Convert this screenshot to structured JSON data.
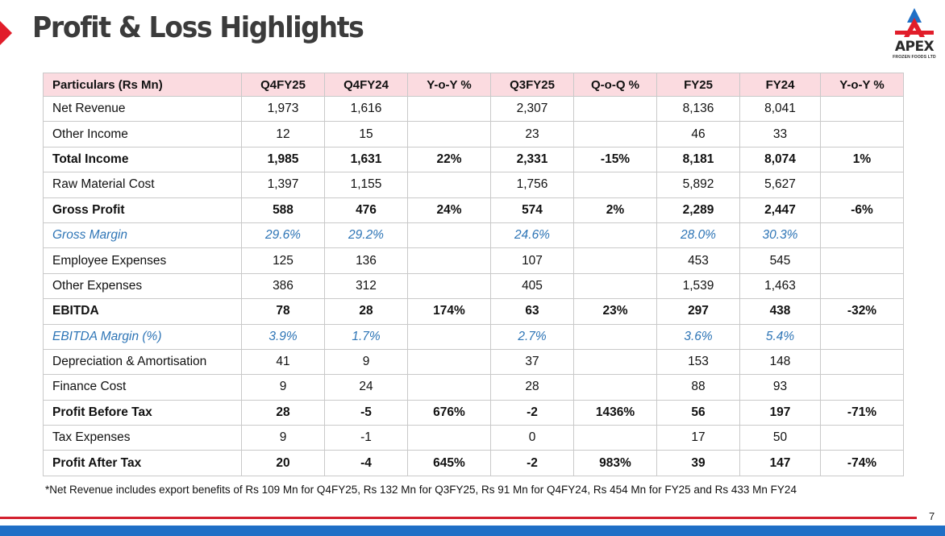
{
  "title": "Profit & Loss Highlights",
  "logo": {
    "name": "APEX",
    "subtitle": "FROZEN FOODS LTD"
  },
  "table": {
    "headers": [
      "Particulars (Rs Mn)",
      "Q4FY25",
      "Q4FY24",
      "Y-o-Y %",
      "Q3FY25",
      "Q-o-Q %",
      "FY25",
      "FY24",
      "Y-o-Y %"
    ],
    "rows": [
      {
        "style": "normal",
        "cells": [
          "Net Revenue",
          "1,973",
          "1,616",
          "",
          "2,307",
          "",
          "8,136",
          "8,041",
          ""
        ]
      },
      {
        "style": "normal",
        "cells": [
          "Other Income",
          "12",
          "15",
          "",
          "23",
          "",
          "46",
          "33",
          ""
        ]
      },
      {
        "style": "bold",
        "cells": [
          "Total Income",
          "1,985",
          "1,631",
          "22%",
          "2,331",
          "-15%",
          "8,181",
          "8,074",
          "1%"
        ]
      },
      {
        "style": "normal",
        "cells": [
          "Raw Material Cost",
          "1,397",
          "1,155",
          "",
          "1,756",
          "",
          "5,892",
          "5,627",
          ""
        ]
      },
      {
        "style": "bold",
        "cells": [
          "Gross Profit",
          "588",
          "476",
          "24%",
          "574",
          "2%",
          "2,289",
          "2,447",
          "-6%"
        ]
      },
      {
        "style": "italic",
        "cells": [
          "Gross Margin",
          "29.6%",
          "29.2%",
          "",
          "24.6%",
          "",
          "28.0%",
          "30.3%",
          ""
        ]
      },
      {
        "style": "normal",
        "cells": [
          "Employee Expenses",
          "125",
          "136",
          "",
          "107",
          "",
          "453",
          "545",
          ""
        ]
      },
      {
        "style": "normal",
        "cells": [
          "Other Expenses",
          "386",
          "312",
          "",
          "405",
          "",
          "1,539",
          "1,463",
          ""
        ]
      },
      {
        "style": "bold",
        "cells": [
          "EBITDA",
          "78",
          "28",
          "174%",
          "63",
          "23%",
          "297",
          "438",
          "-32%"
        ]
      },
      {
        "style": "italic",
        "cells": [
          "EBITDA Margin (%)",
          "3.9%",
          "1.7%",
          "",
          "2.7%",
          "",
          "3.6%",
          "5.4%",
          ""
        ]
      },
      {
        "style": "normal",
        "cells": [
          "Depreciation & Amortisation",
          "41",
          "9",
          "",
          "37",
          "",
          "153",
          "148",
          ""
        ]
      },
      {
        "style": "normal",
        "cells": [
          "Finance Cost",
          "9",
          "24",
          "",
          "28",
          "",
          "88",
          "93",
          ""
        ]
      },
      {
        "style": "bold",
        "cells": [
          "Profit Before Tax",
          "28",
          "-5",
          "676%",
          "-2",
          "1436%",
          "56",
          "197",
          "-71%"
        ]
      },
      {
        "style": "normal",
        "cells": [
          "Tax Expenses",
          "9",
          "-1",
          "",
          "0",
          "",
          "17",
          "50",
          ""
        ]
      },
      {
        "style": "bold",
        "cells": [
          "Profit After Tax",
          "20",
          "-4",
          "645%",
          "-2",
          "983%",
          "39",
          "147",
          "-74%"
        ]
      }
    ]
  },
  "footnote": "*Net Revenue includes export benefits of Rs 109 Mn for Q4FY25, Rs 132 Mn for Q3FY25, Rs 91 Mn for Q4FY24, Rs 454 Mn for FY25 and Rs 433 Mn FY24",
  "page_number": "7",
  "colors": {
    "accent_red": "#e11d2a",
    "header_pink": "#fbdbe0",
    "italic_blue": "#2e75b6",
    "bottom_blue": "#1f6fc6"
  }
}
